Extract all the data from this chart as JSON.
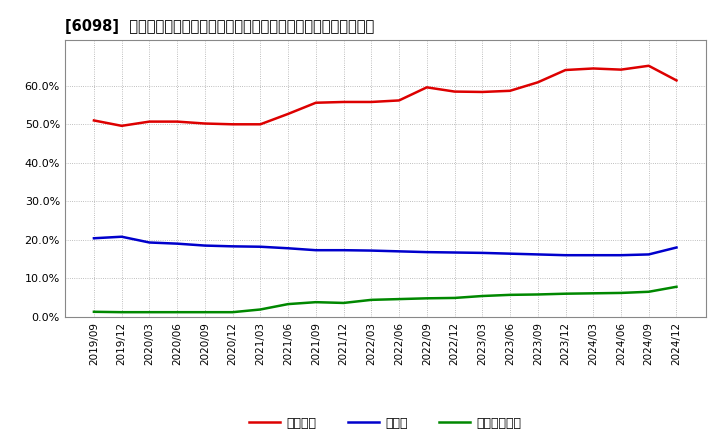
{
  "title": "[6098]  自己資本、のれん、繰延税金資産の総資産に対する比率の推移",
  "background_color": "#ffffff",
  "plot_bg_color": "#ffffff",
  "grid_color": "#aaaaaa",
  "ylim": [
    0.0,
    0.72
  ],
  "yticks": [
    0.0,
    0.1,
    0.2,
    0.3,
    0.4,
    0.5,
    0.6
  ],
  "legend_labels": [
    "自己資本",
    "のれん",
    "繰延税金資産"
  ],
  "line_colors": [
    "#dd0000",
    "#0000cc",
    "#008800"
  ],
  "x_labels": [
    "2019/09",
    "2019/12",
    "2020/03",
    "2020/06",
    "2020/09",
    "2020/12",
    "2021/03",
    "2021/06",
    "2021/09",
    "2021/12",
    "2022/03",
    "2022/06",
    "2022/09",
    "2022/12",
    "2023/03",
    "2023/06",
    "2023/09",
    "2023/12",
    "2024/03",
    "2024/06",
    "2024/09",
    "2024/12"
  ],
  "jiko_shihon": [
    0.51,
    0.496,
    0.507,
    0.507,
    0.502,
    0.5,
    0.5,
    0.527,
    0.556,
    0.558,
    0.558,
    0.562,
    0.596,
    0.585,
    0.584,
    0.587,
    0.609,
    0.641,
    0.645,
    0.642,
    0.652,
    0.614
  ],
  "noren": [
    0.204,
    0.208,
    0.193,
    0.19,
    0.185,
    0.183,
    0.182,
    0.178,
    0.173,
    0.173,
    0.172,
    0.17,
    0.168,
    0.167,
    0.166,
    0.164,
    0.162,
    0.16,
    0.16,
    0.16,
    0.162,
    0.18
  ],
  "kurinobe_zeikin": [
    0.013,
    0.012,
    0.012,
    0.012,
    0.012,
    0.012,
    0.019,
    0.033,
    0.038,
    0.036,
    0.044,
    0.046,
    0.048,
    0.049,
    0.054,
    0.057,
    0.058,
    0.06,
    0.061,
    0.062,
    0.065,
    0.078
  ]
}
